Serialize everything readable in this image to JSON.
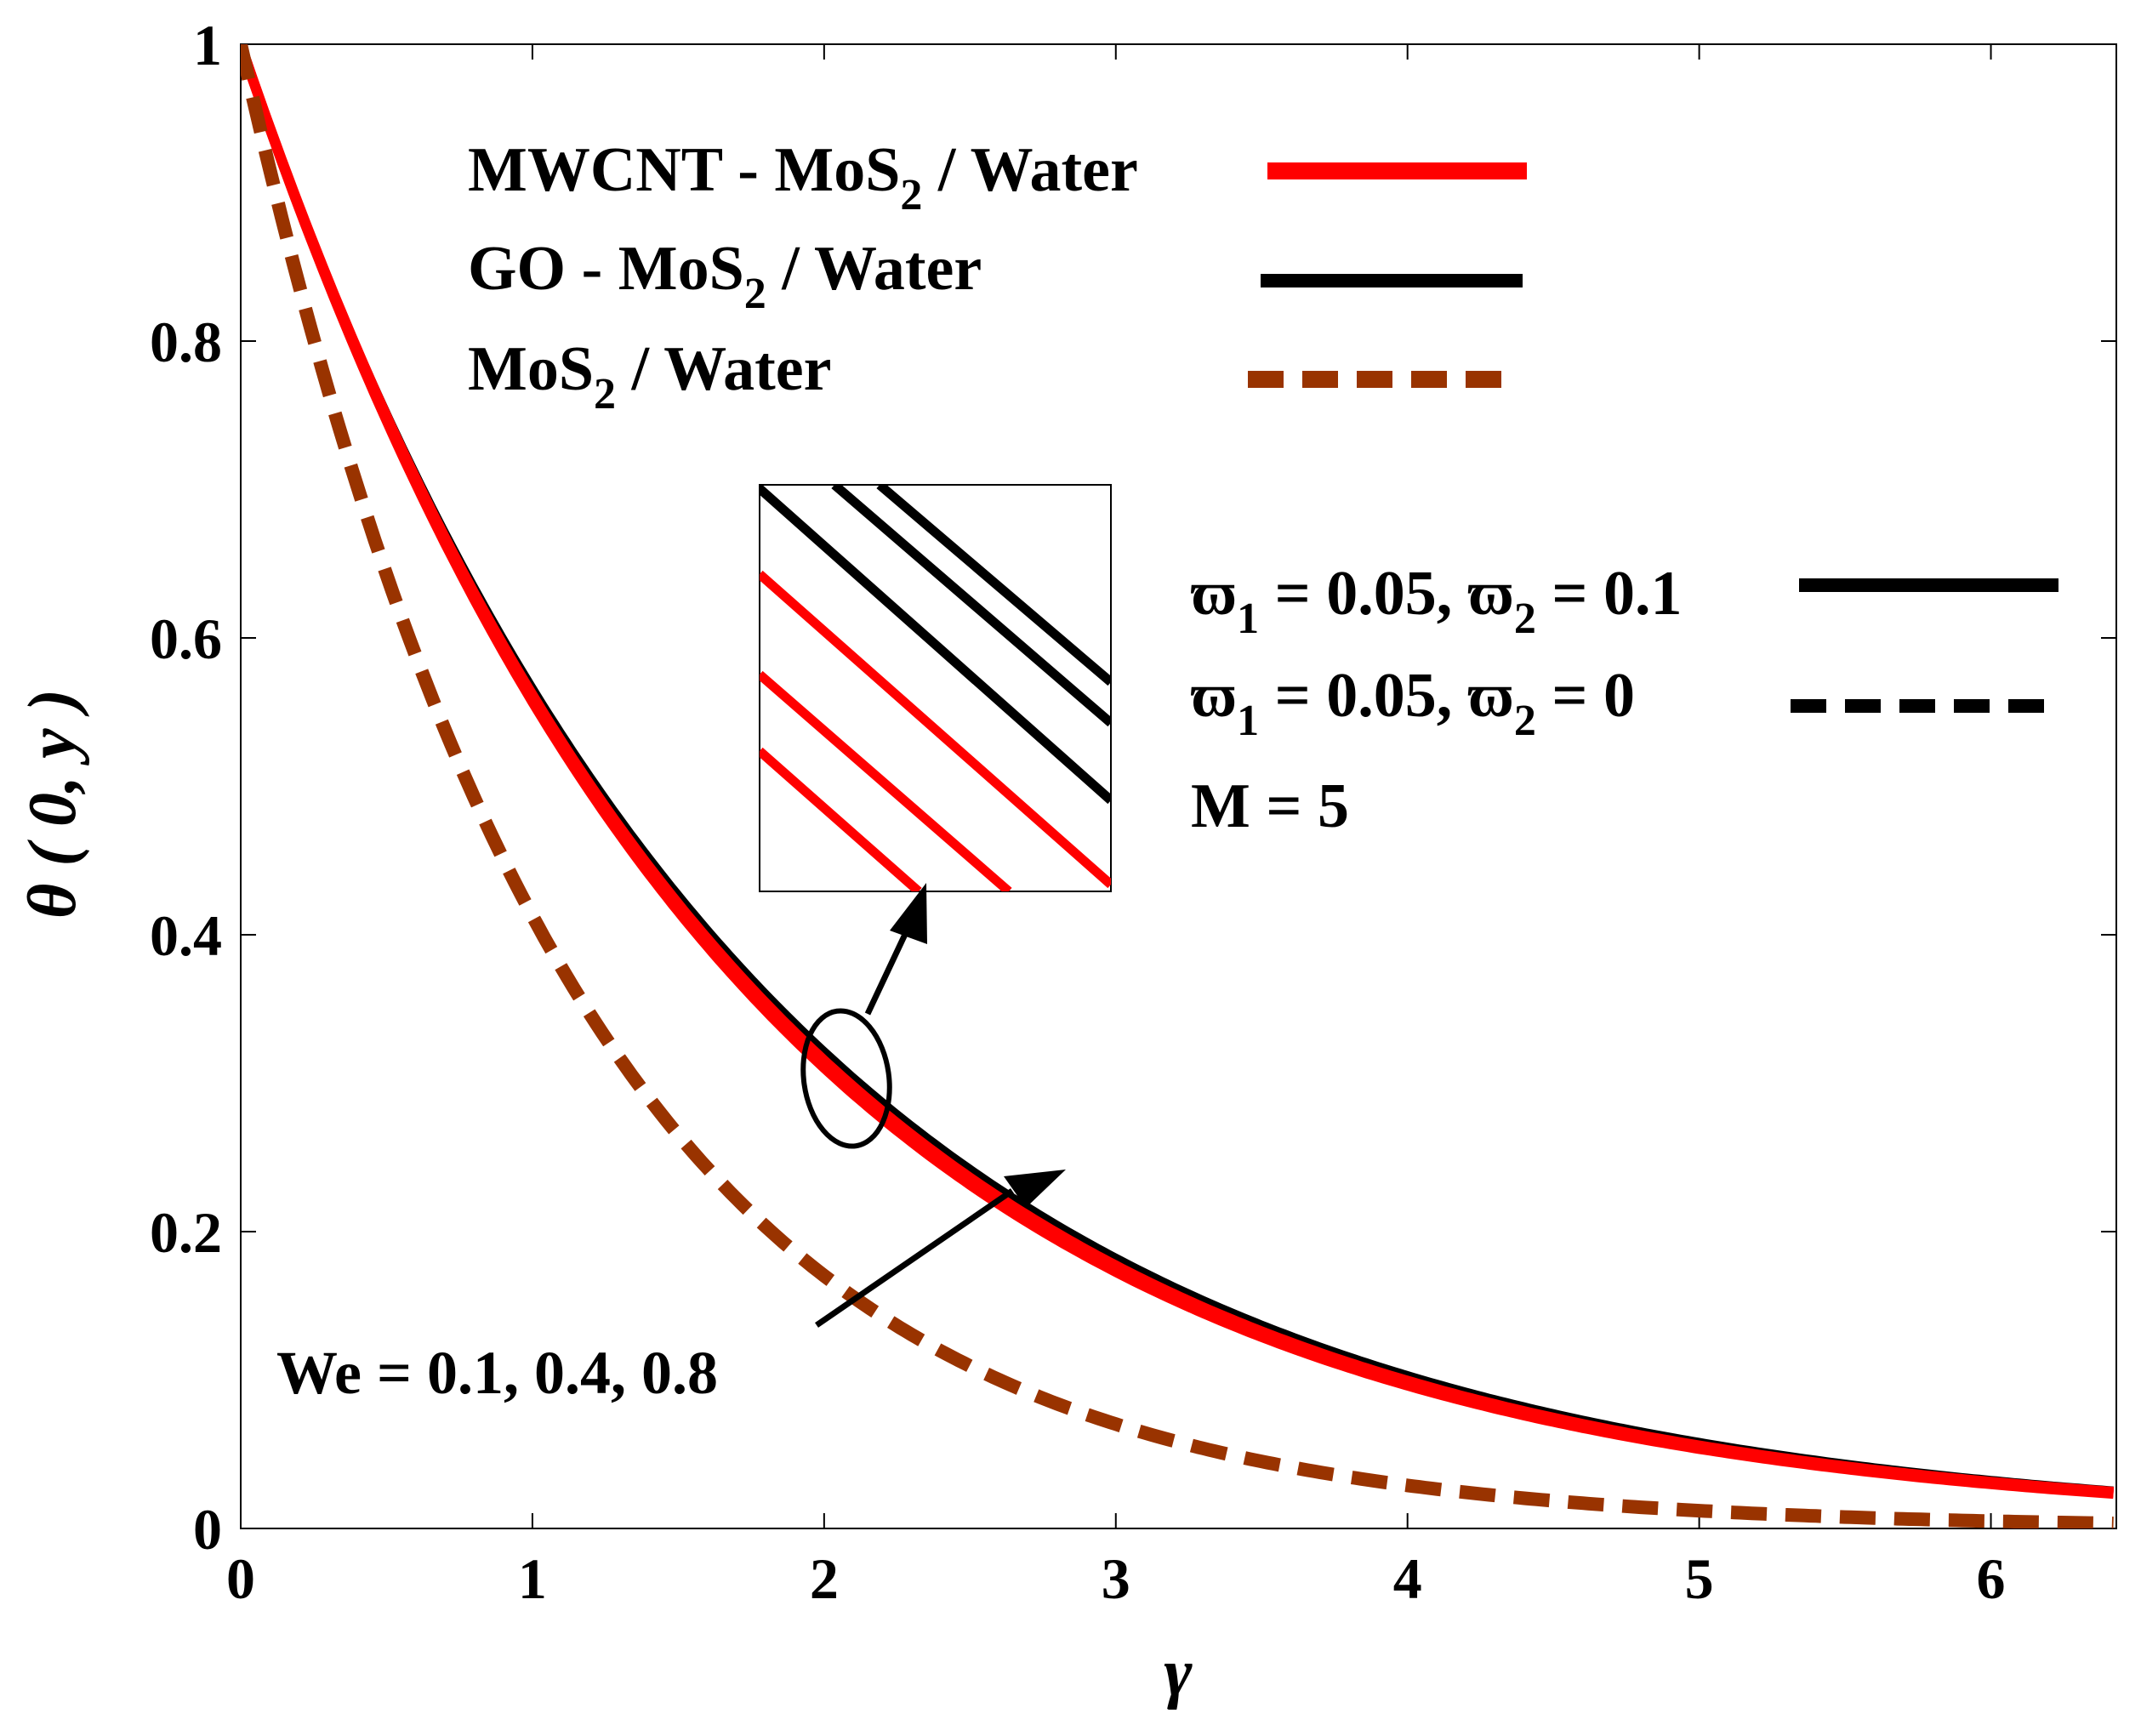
{
  "chart_data": {
    "type": "line",
    "xlabel": "γ",
    "ylabel": "θ ( 0, y )",
    "xlim": [
      0,
      6.43
    ],
    "ylim": [
      0,
      1
    ],
    "x_ticks": [
      0,
      1,
      2,
      3,
      4,
      5,
      6
    ],
    "y_ticks": [
      0,
      0.2,
      0.4,
      0.6,
      0.8,
      1
    ],
    "x_tick_labels": [
      "0",
      "1",
      "2",
      "3",
      "4",
      "5",
      "6"
    ],
    "y_tick_labels": [
      "0",
      "0.2",
      "0.4",
      "0.6",
      "0.8",
      "1"
    ],
    "grid": false,
    "colors": {
      "red": "#ff0000",
      "black": "#000000",
      "brown": "#993300"
    },
    "series": [
      {
        "name": "GO - MoS2 / Water, We = 0.8",
        "color": "#000000",
        "dash": "solid",
        "decay": 0.565
      },
      {
        "name": "GO - MoS2 / Water, We = 0.4",
        "color": "#000000",
        "dash": "solid",
        "decay": 0.569
      },
      {
        "name": "GO - MoS2 / Water, We = 0.1",
        "color": "#000000",
        "dash": "solid",
        "decay": 0.573
      },
      {
        "name": "MWCNT - MoS2 / Water, We = 0.8",
        "color": "#ff0000",
        "dash": "solid",
        "decay": 0.577
      },
      {
        "name": "MWCNT - MoS2 / Water, We = 0.4",
        "color": "#ff0000",
        "dash": "solid",
        "decay": 0.581
      },
      {
        "name": "MWCNT - MoS2 / Water, We = 0.1",
        "color": "#ff0000",
        "dash": "solid",
        "decay": 0.585
      },
      {
        "name": "MoS2 / Water (ϖ2 = 0)",
        "color": "#993300",
        "dash": "dashed",
        "decay": 0.885
      }
    ],
    "legend_fluids": [
      {
        "main": "MWCNT - MoS",
        "sub": "2",
        "rest": " / Water",
        "color": "#ff0000",
        "dash": "solid"
      },
      {
        "main": "GO - MoS",
        "sub": "2",
        "rest": " / Water",
        "color": "#000000",
        "dash": "solid"
      },
      {
        "main": "MoS",
        "sub": "2",
        "rest": " / Water",
        "color": "#993300",
        "dash": "dashed"
      }
    ],
    "legend_params": [
      {
        "sym1": "ϖ",
        "sub1": "1",
        "mid": " = 0.05, ",
        "sym2": "ϖ",
        "sub2": "2",
        "end": " = 0.1",
        "dash": "solid"
      },
      {
        "sym1": "ϖ",
        "sub1": "1",
        "mid": " = 0.05, ",
        "sym2": "ϖ",
        "sub2": "2",
        "end": " = 0",
        "dash": "dashed"
      }
    ],
    "param_m": "M = 5",
    "annotation": "We = 0.1, 0.4, 0.8"
  }
}
